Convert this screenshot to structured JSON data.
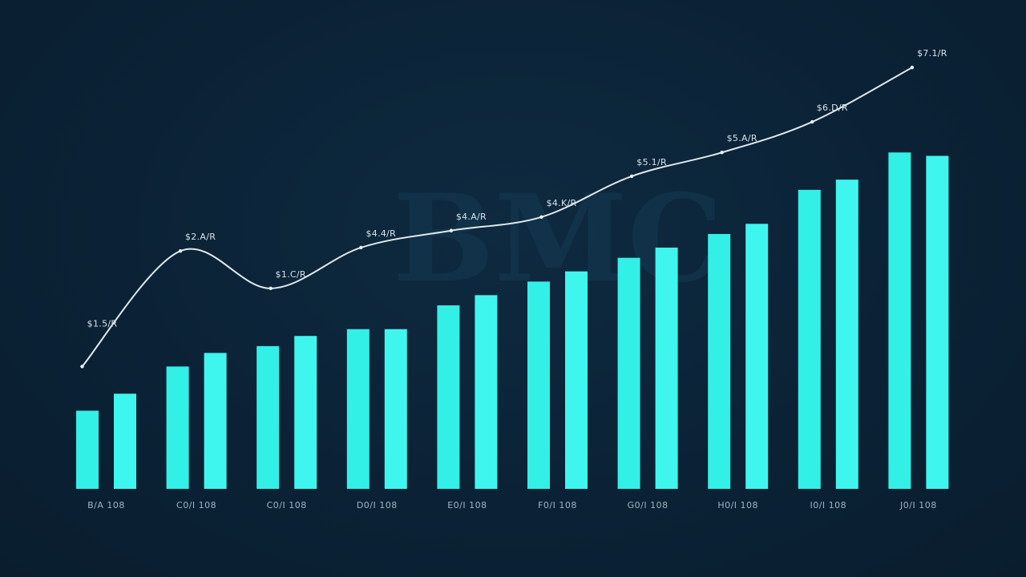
{
  "watermark": "BMC",
  "colors": {
    "background": "#0b2236",
    "bars": "#33f0e6",
    "line": "#dfe9ee"
  },
  "chart_data": {
    "type": "bar",
    "categories": [
      "B/A 108",
      "C0/I 108",
      "C0/I 108",
      "D0/I 108",
      "E0/I 108",
      "F0/I 108",
      "G0/I 108",
      "H0/I 108",
      "I0/I 108",
      "J0/I 108"
    ],
    "series": [
      {
        "values": [
          23,
          36,
          42,
          47,
          54,
          61,
          68,
          75,
          88,
          99
        ]
      },
      {
        "values": [
          28,
          40,
          45,
          47,
          57,
          64,
          71,
          78,
          91,
          98
        ]
      }
    ],
    "line": {
      "values": [
        36,
        70,
        59,
        71,
        76,
        80,
        92,
        99,
        108,
        124
      ],
      "labels": [
        "$1.5/R",
        "$2.A/R",
        "$1.C/R",
        "$4.4/R",
        "$4.A/R",
        "$4.K/R",
        "$5.1/R",
        "$5.A/R",
        "$6.D/R",
        "$7.1/R"
      ]
    },
    "ylim": [
      0,
      125
    ],
    "grid": false,
    "legend": "none"
  }
}
